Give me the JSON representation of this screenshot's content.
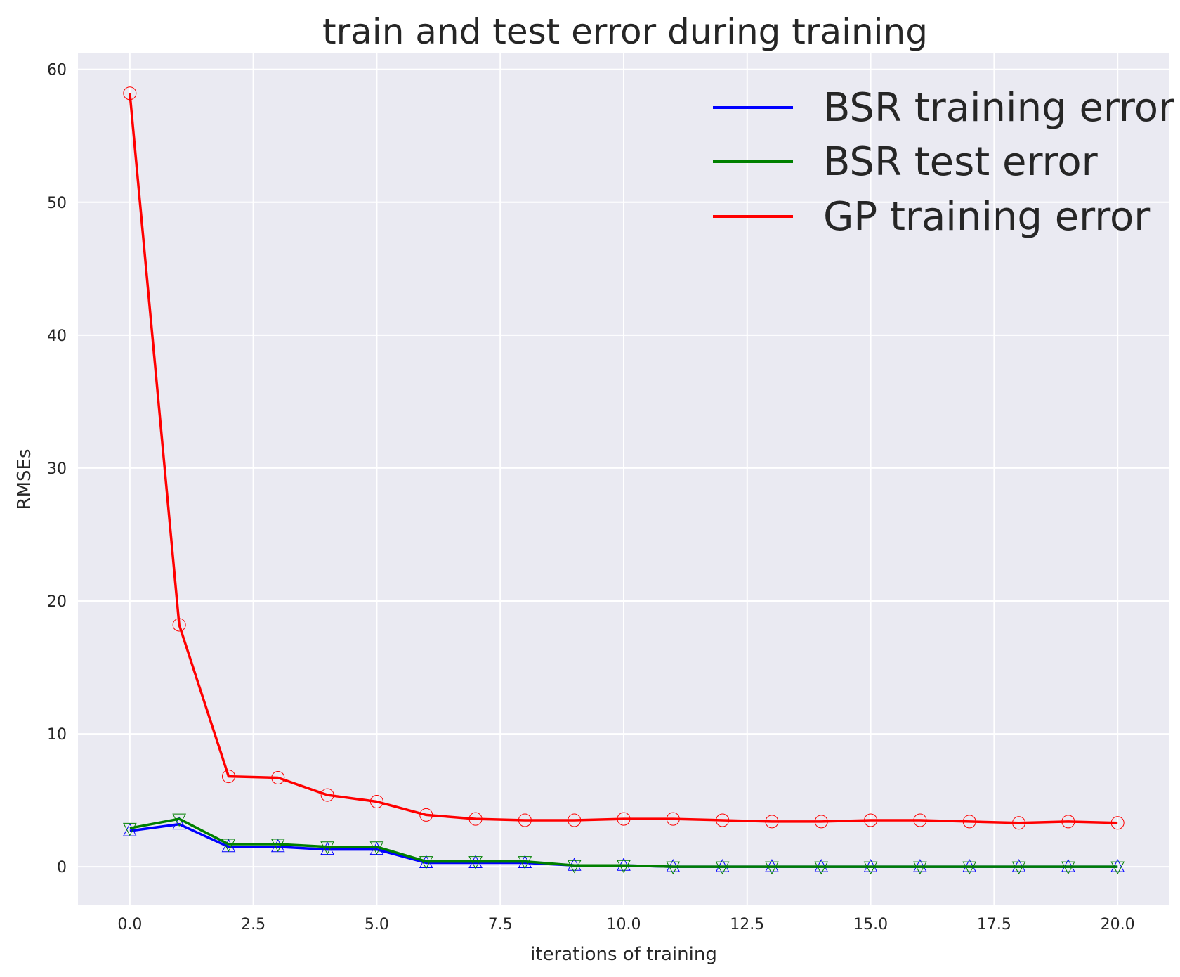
{
  "chart_data": {
    "type": "line",
    "title": "train and test error during training",
    "xlabel": "iterations of training",
    "ylabel": "RMSEs",
    "xlim": [
      -1.05,
      21.05
    ],
    "ylim": [
      -2.9,
      61.2
    ],
    "xticks": [
      0.0,
      2.5,
      5.0,
      7.5,
      10.0,
      12.5,
      15.0,
      17.5,
      20.0
    ],
    "xtick_labels": [
      "0.0",
      "2.5",
      "5.0",
      "7.5",
      "10.0",
      "12.5",
      "15.0",
      "17.5",
      "20.0"
    ],
    "yticks": [
      0,
      10,
      20,
      30,
      40,
      50,
      60
    ],
    "ytick_labels": [
      "0",
      "10",
      "20",
      "30",
      "40",
      "50",
      "60"
    ],
    "grid": true,
    "legend_position": "top-right",
    "x": [
      0,
      1,
      2,
      3,
      4,
      5,
      6,
      7,
      8,
      9,
      10,
      11,
      12,
      13,
      14,
      15,
      16,
      17,
      18,
      19,
      20
    ],
    "series": [
      {
        "name": "BSR training error",
        "color": "#0000ff",
        "marker": "triangle-up",
        "values": [
          2.7,
          3.2,
          1.5,
          1.5,
          1.3,
          1.3,
          0.3,
          0.3,
          0.3,
          0.1,
          0.1,
          0.0,
          0.0,
          0.0,
          0.0,
          0.0,
          0.0,
          0.0,
          0.0,
          0.0,
          0.0
        ]
      },
      {
        "name": "BSR test error",
        "color": "#008000",
        "marker": "triangle-down",
        "values": [
          2.9,
          3.6,
          1.7,
          1.7,
          1.5,
          1.5,
          0.4,
          0.4,
          0.4,
          0.1,
          0.1,
          0.0,
          0.0,
          0.0,
          0.0,
          0.0,
          0.0,
          0.0,
          0.0,
          0.0,
          0.0
        ]
      },
      {
        "name": "GP training error",
        "color": "#ff0000",
        "marker": "circle",
        "values": [
          58.2,
          18.2,
          6.8,
          6.7,
          5.4,
          4.9,
          3.9,
          3.6,
          3.5,
          3.5,
          3.6,
          3.6,
          3.5,
          3.4,
          3.4,
          3.5,
          3.5,
          3.4,
          3.3,
          3.4,
          3.3
        ]
      }
    ],
    "background_color": "#eaeaf2",
    "grid_color": "#ffffff"
  }
}
